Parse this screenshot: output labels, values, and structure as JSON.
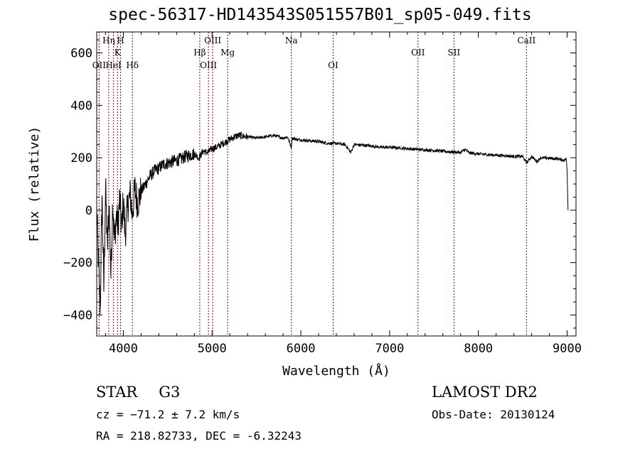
{
  "title": "spec-56317-HD143543S051557B01_sp05-049.fits",
  "info": {
    "object_class": "STAR",
    "subclass": "G3",
    "survey": "LAMOST DR2",
    "cz": "cz = −71.2 ± 7.2 km/s",
    "obs_date": "Obs-Date: 20130124",
    "coords": "RA = 218.82733, DEC =  -6.32243"
  },
  "chart_data": {
    "type": "line",
    "title": "spec-56317-HD143543S051557B01_sp05-049.fits",
    "xlabel": "Wavelength (Å)",
    "ylabel": "Flux (relative)",
    "xlim": [
      3700,
      9100
    ],
    "ylim": [
      -480,
      680
    ],
    "xticks": [
      4000,
      5000,
      6000,
      7000,
      8000,
      9000
    ],
    "xtick_labels": [
      "4000",
      "5000",
      "6000",
      "7000",
      "8000",
      "9000"
    ],
    "yticks": [
      -400,
      -200,
      0,
      200,
      400,
      600
    ],
    "ytick_labels": [
      "−400",
      "−200",
      "0",
      "200",
      "400",
      "600"
    ],
    "grid": false,
    "line_color": "#000000",
    "marker_color": "#8b0000",
    "spectral_lines": [
      {
        "label": "OII",
        "x": 3727,
        "row": 3
      },
      {
        "label": "Hη",
        "x": 3835,
        "row": 1
      },
      {
        "label": "HeI",
        "x": 3889,
        "row": 3
      },
      {
        "label": "K",
        "x": 3934,
        "row": 2
      },
      {
        "label": "H",
        "x": 3969,
        "row": 1
      },
      {
        "label": "Hδ",
        "x": 4102,
        "row": 3
      },
      {
        "label": "Hβ",
        "x": 4861,
        "row": 2
      },
      {
        "label": "OIII",
        "x": 4959,
        "row": 3
      },
      {
        "label": "OIII",
        "x": 5007,
        "row": 1
      },
      {
        "label": "Mg",
        "x": 5175,
        "row": 2
      },
      {
        "label": "Na",
        "x": 5893,
        "row": 1
      },
      {
        "label": "OI",
        "x": 6364,
        "row": 3
      },
      {
        "label": "OII",
        "x": 7320,
        "row": 2
      },
      {
        "label": "SII",
        "x": 7725,
        "row": 2
      },
      {
        "label": "CaII",
        "x": 8542,
        "row": 1
      }
    ],
    "series": [
      {
        "x": [
          3700,
          3720,
          3740,
          3760,
          3780,
          3800,
          3820,
          3840,
          3860,
          3880,
          3900,
          3920,
          3940,
          3960,
          3980,
          4000,
          4020,
          4050,
          4080,
          4100,
          4130,
          4160,
          4200,
          4250,
          4300,
          4350,
          4400,
          4450,
          4500,
          4550,
          4600,
          4650,
          4700,
          4750,
          4800,
          4850,
          4900,
          4950,
          5000,
          5050,
          5100,
          5150,
          5200,
          5250,
          5300,
          5400,
          5500,
          5600,
          5700,
          5800,
          5850,
          5893,
          5900,
          5950,
          6000,
          6100,
          6200,
          6300,
          6400,
          6500,
          6563,
          6600,
          6700,
          6800,
          6900,
          7000,
          7100,
          7200,
          7300,
          7400,
          7500,
          7600,
          7700,
          7800,
          7850,
          7900,
          8000,
          8100,
          8200,
          8300,
          8400,
          8500,
          8542,
          8600,
          8662,
          8700,
          8800,
          8900,
          8960,
          8990,
          9000,
          9010
        ],
        "y": [
          0,
          -200,
          -380,
          60,
          -300,
          90,
          -150,
          30,
          -250,
          40,
          -120,
          -20,
          -60,
          50,
          -80,
          40,
          -90,
          20,
          60,
          -20,
          80,
          30,
          70,
          100,
          130,
          150,
          160,
          175,
          180,
          185,
          190,
          195,
          205,
          210,
          215,
          200,
          225,
          220,
          235,
          240,
          250,
          260,
          270,
          280,
          285,
          280,
          275,
          280,
          285,
          275,
          280,
          240,
          275,
          270,
          268,
          265,
          262,
          255,
          255,
          250,
          220,
          250,
          248,
          245,
          240,
          240,
          238,
          235,
          232,
          230,
          228,
          225,
          222,
          220,
          232,
          218,
          215,
          212,
          210,
          208,
          205,
          205,
          180,
          205,
          185,
          200,
          198,
          196,
          190,
          195,
          150,
          0
        ]
      }
    ]
  }
}
